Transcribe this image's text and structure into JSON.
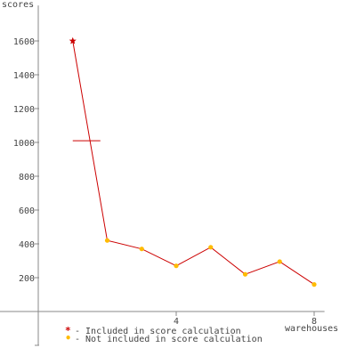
{
  "chart_data": {
    "type": "line",
    "ylabel": "scores",
    "xlabel": "warehouses",
    "x_ticks": [
      "4",
      "8"
    ],
    "y_ticks": [
      "200",
      "400",
      "600",
      "800",
      "1000",
      "1200",
      "1400",
      "1600"
    ],
    "xlim": [
      -1,
      8.3
    ],
    "ylim": [
      -200,
      1810
    ],
    "series": [
      {
        "name": "Included in score calculation",
        "color": "#cc0000",
        "marker": "star",
        "x": [
          1
        ],
        "y": [
          1600
        ]
      },
      {
        "name": "Not included in score calculation",
        "color": "#ffbb00",
        "marker": "circle",
        "x": [
          2,
          3,
          4,
          5,
          6,
          7,
          8
        ],
        "y": [
          420,
          370,
          270,
          380,
          220,
          295,
          160
        ]
      }
    ],
    "line": {
      "color": "#cc0000",
      "x": [
        1,
        2,
        3,
        4,
        5,
        6,
        7,
        8
      ],
      "y": [
        1600,
        420,
        370,
        270,
        380,
        220,
        295,
        160
      ]
    },
    "reference_mark": {
      "x_range": [
        1,
        1.8
      ],
      "y": 1010,
      "color": "#cc0000"
    },
    "legend": {
      "placement": "bottom-left",
      "items": [
        {
          "symbol": "*",
          "label": "- Included in score calculation",
          "color": "#cc0000"
        },
        {
          "symbol": "•",
          "label": "- Not included in score calculation",
          "color": "#ffbb00"
        }
      ]
    },
    "axis_color": "#888888"
  }
}
